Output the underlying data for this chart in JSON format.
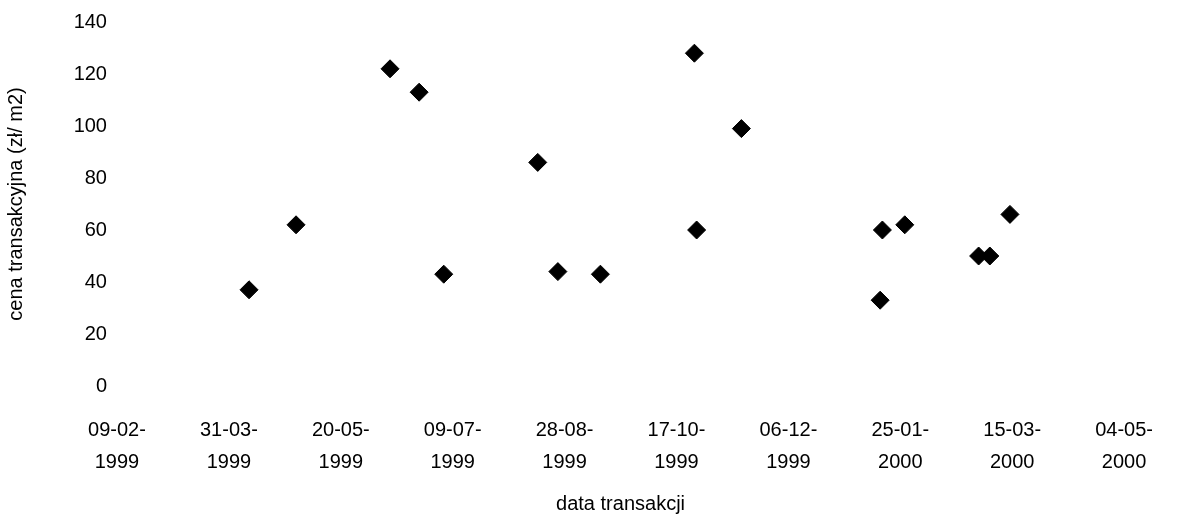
{
  "chart_data": {
    "type": "scatter",
    "xlabel": "data transakcji",
    "ylabel": "cena transakcyjna (zł/ m2)",
    "marker": "diamond",
    "x": [
      "1999-04-09",
      "1999-04-30",
      "1999-06-11",
      "1999-06-24",
      "1999-07-05",
      "1999-08-16",
      "1999-08-25",
      "1999-09-13",
      "1999-10-25",
      "1999-10-26",
      "1999-11-15",
      "2000-01-17",
      "2000-01-16",
      "2000-01-27",
      "2000-02-29",
      "2000-03-05",
      "2000-03-14"
    ],
    "series": [
      {
        "color": "#000000",
        "values": [
          37,
          62,
          122,
          113,
          43,
          86,
          44,
          43,
          128,
          60,
          99,
          60,
          33,
          62,
          50,
          50,
          66
        ]
      }
    ],
    "xlim": [
      "1999-02-09",
      "2000-05-04"
    ],
    "xticks": [
      {
        "value": "1999-02-09",
        "label": "09-02-1999"
      },
      {
        "value": "1999-03-31",
        "label": "31-03-1999"
      },
      {
        "value": "1999-05-20",
        "label": "20-05-1999"
      },
      {
        "value": "1999-07-09",
        "label": "09-07-1999"
      },
      {
        "value": "1999-08-28",
        "label": "28-08-1999"
      },
      {
        "value": "1999-10-17",
        "label": "17-10-1999"
      },
      {
        "value": "1999-12-06",
        "label": "06-12-1999"
      },
      {
        "value": "2000-01-25",
        "label": "25-01-2000"
      },
      {
        "value": "2000-03-15",
        "label": "15-03-2000"
      },
      {
        "value": "2000-05-04",
        "label": "04-05-2000"
      }
    ],
    "ylim": [
      0,
      140
    ],
    "yticks": [
      0,
      20,
      40,
      60,
      80,
      100,
      120,
      140
    ]
  }
}
